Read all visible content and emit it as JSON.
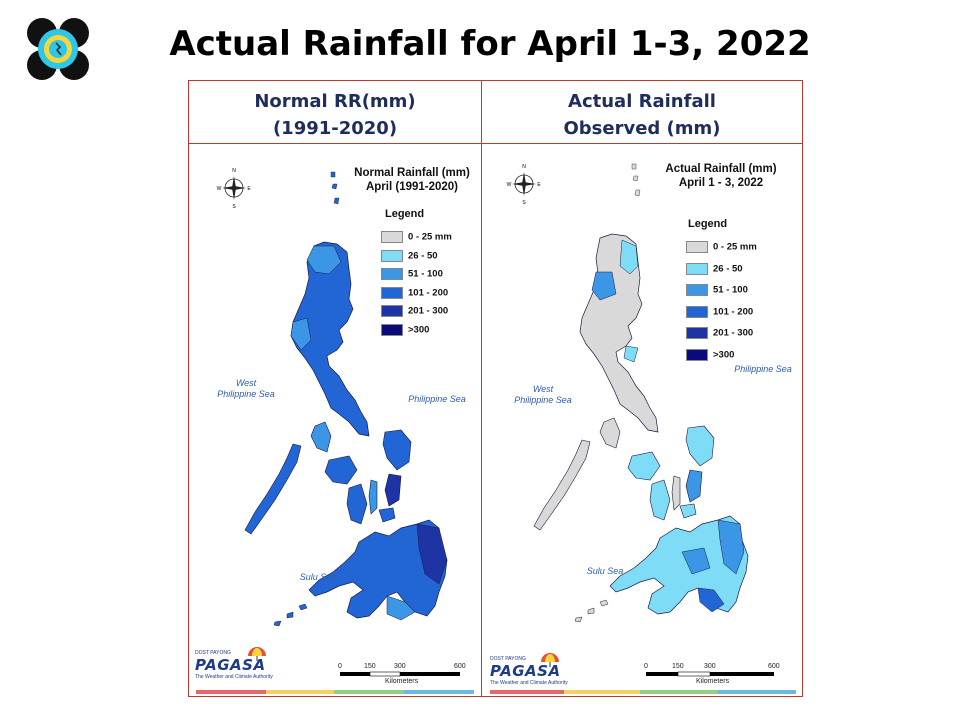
{
  "title": "Actual Rainfall for April 1-3, 2022",
  "colors": {
    "c0": "#d9d9d9",
    "c1": "#7fdcf7",
    "c2": "#3c96e6",
    "c3": "#2266d6",
    "c4": "#1e33a4",
    "c5": "#0a0a7a",
    "frame": "#c0392b",
    "header_text": "#1f2d5c"
  },
  "left": {
    "header_line1": "Normal RR(mm)",
    "header_line2": "(1991-2020)",
    "map_title_line1": "Normal Rainfall (mm)",
    "map_title_line2": "April (1991-2020)",
    "legend_title": "Legend",
    "legend": [
      {
        "label": "0 - 25 mm",
        "color": "#d9d9d9"
      },
      {
        "label": "26 - 50",
        "color": "#7fdcf7"
      },
      {
        "label": "51 - 100",
        "color": "#3c96e6"
      },
      {
        "label": "101 - 200",
        "color": "#2266d6"
      },
      {
        "label": "201 - 300",
        "color": "#1e33a4"
      },
      {
        "label": ">300",
        "color": "#0a0a7a"
      }
    ],
    "sea_west": "West\nPhilippine Sea",
    "sea_east": "Philippine Sea",
    "sea_sulu": "Sulu Sea",
    "scale_ticks": [
      "0",
      "150",
      "300",
      "600"
    ],
    "scale_unit": "Kilometers"
  },
  "right": {
    "header_line1": "Actual Rainfall",
    "header_line2": "Observed (mm)",
    "map_title_line1": "Actual Rainfall (mm)",
    "map_title_line2": "April 1 - 3, 2022",
    "legend_title": "Legend",
    "legend": [
      {
        "label": "0 - 25 mm",
        "color": "#d9d9d9"
      },
      {
        "label": "26 - 50",
        "color": "#7fdcf7"
      },
      {
        "label": "51 - 100",
        "color": "#3c96e6"
      },
      {
        "label": "101 - 200",
        "color": "#2266d6"
      },
      {
        "label": "201 - 300",
        "color": "#1e33a4"
      },
      {
        "label": ">300",
        "color": "#0a0a7a"
      }
    ],
    "sea_west": "West\nPhilippine Sea",
    "sea_east": "Philippine Sea",
    "sea_sulu": "Sulu Sea",
    "scale_ticks": [
      "0",
      "150",
      "300",
      "600"
    ],
    "scale_unit": "Kilometers"
  },
  "branding": {
    "word": "PAGASA",
    "top": "DOST PAYONG",
    "tagline": "The Weather and Climate Authority"
  },
  "compass": {
    "n": "N",
    "s": "S",
    "e": "E",
    "w": "W"
  }
}
